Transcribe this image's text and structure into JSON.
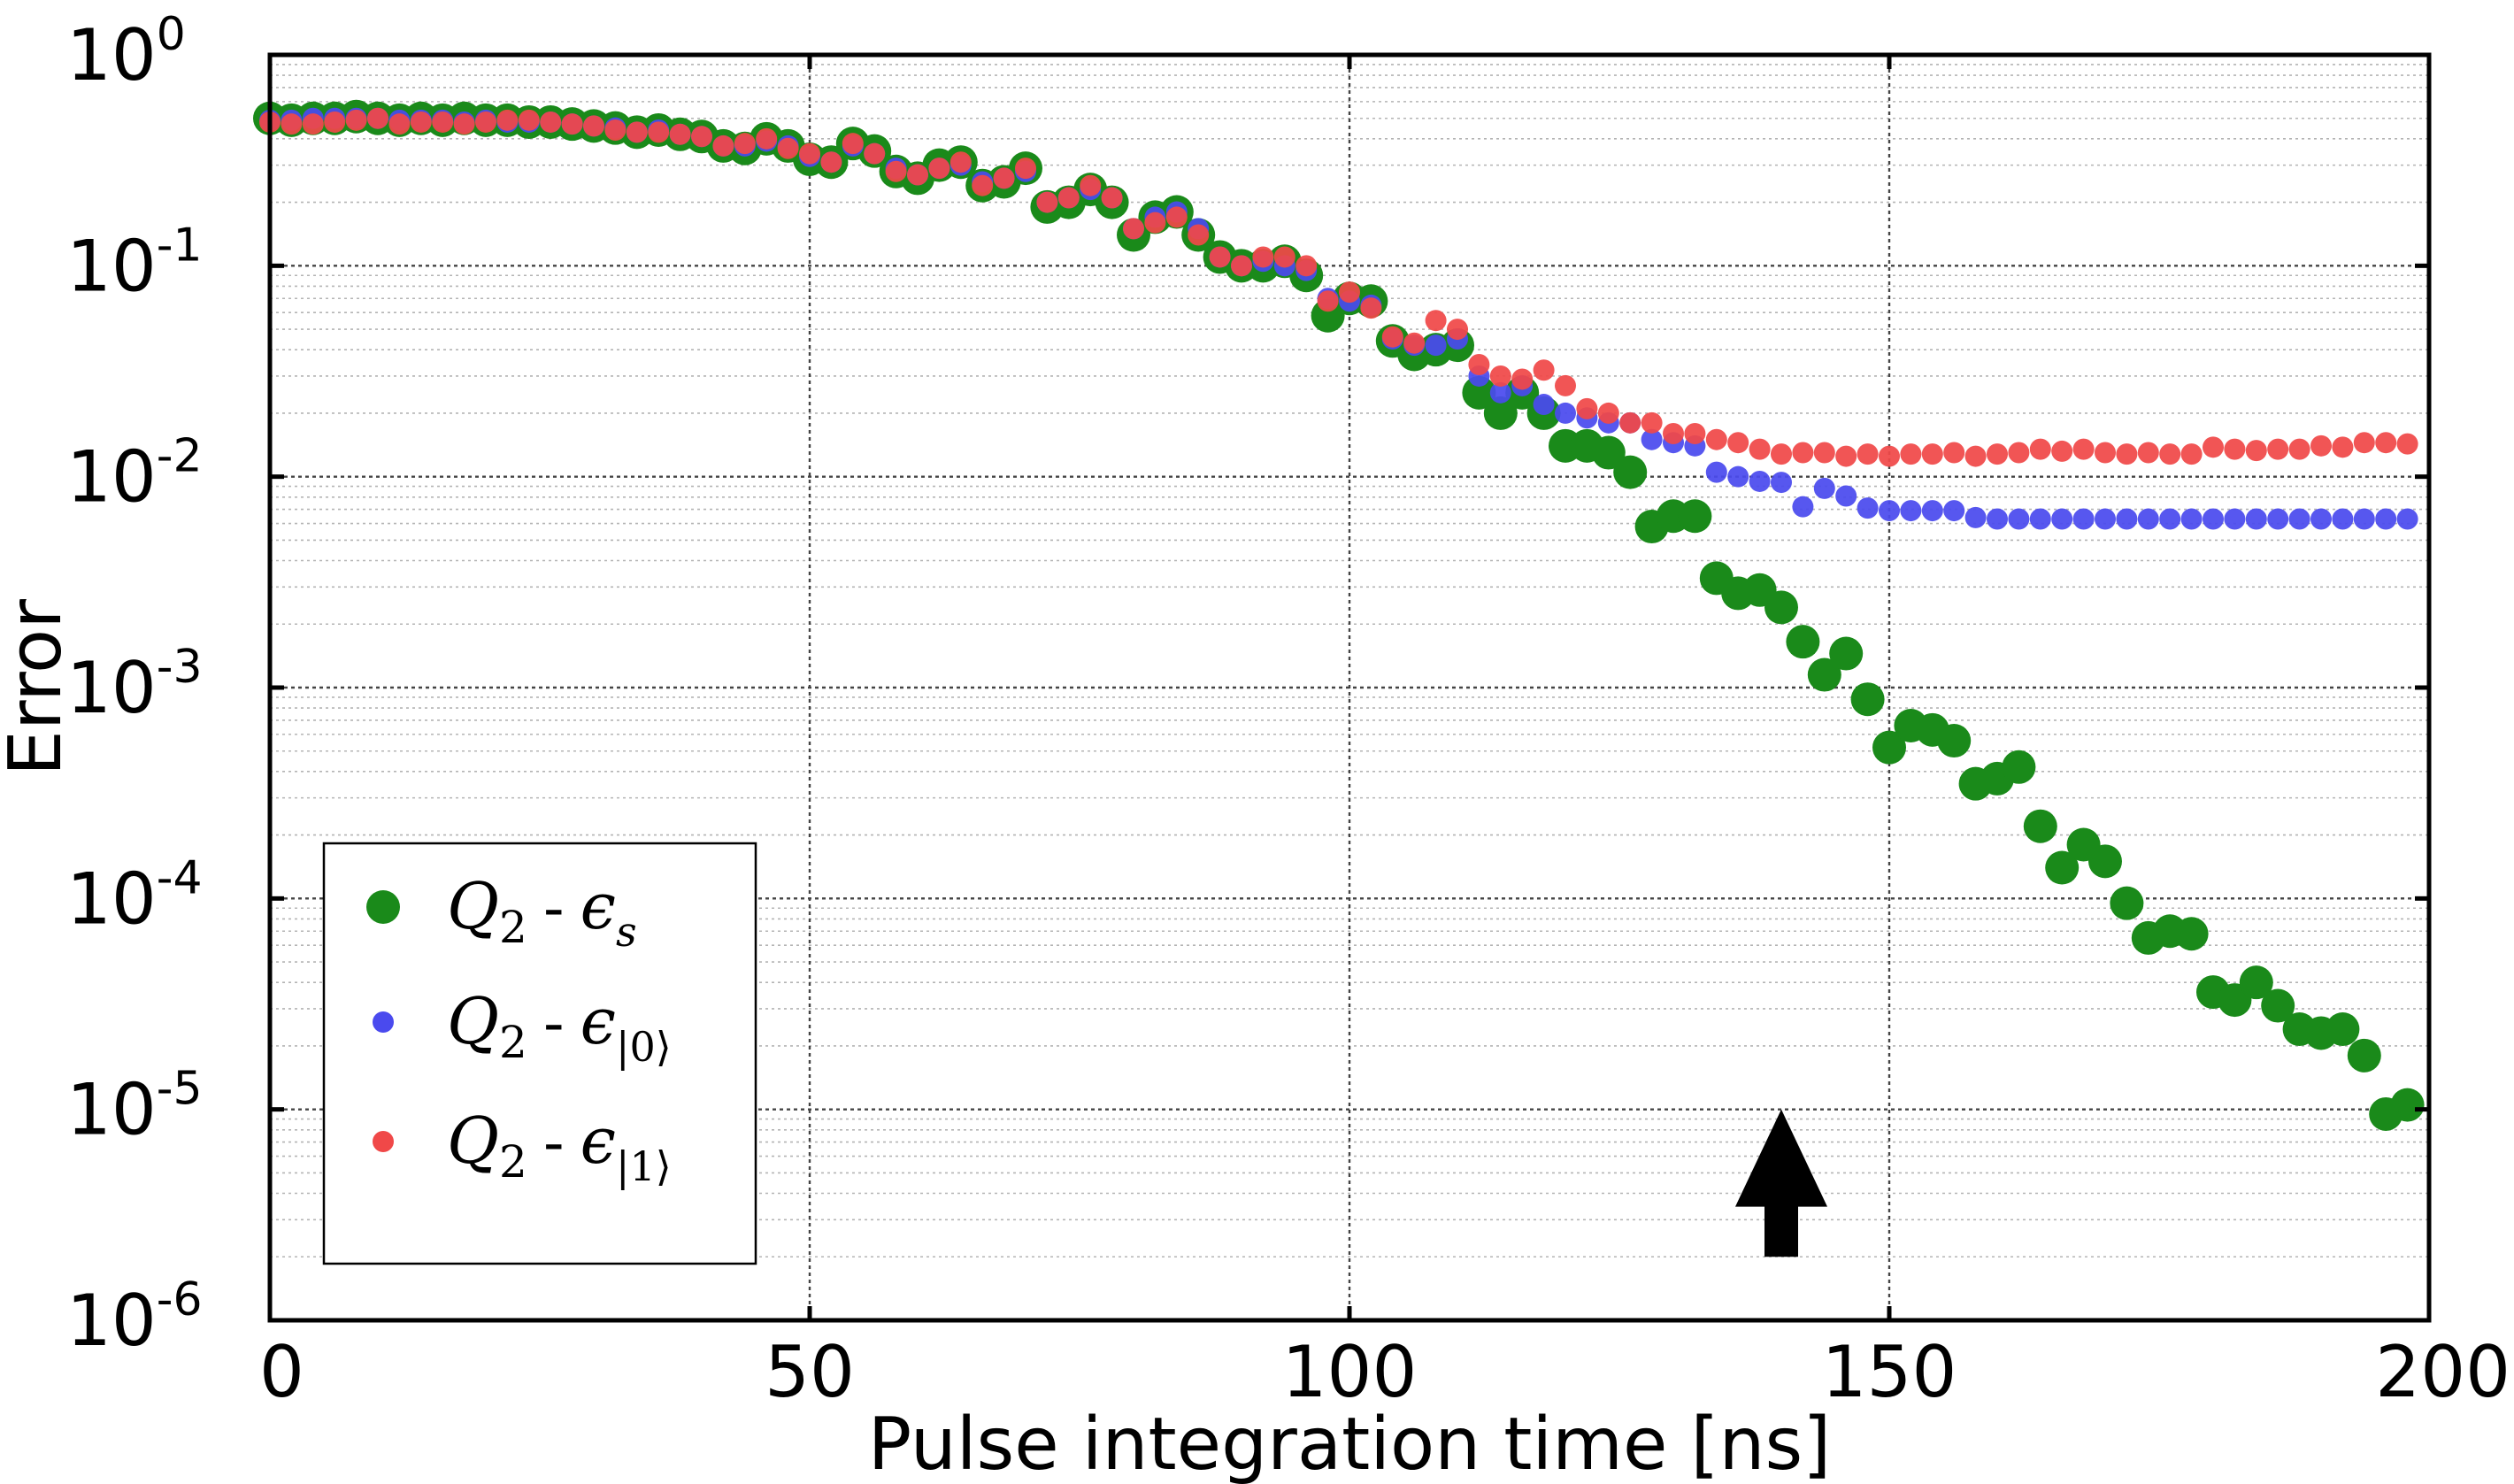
{
  "chart_data": {
    "type": "scatter",
    "title": "",
    "xlabel": "Pulse integration time [ns]",
    "ylabel": "Error",
    "xlim": [
      0,
      200
    ],
    "ylim": [
      1e-06,
      1
    ],
    "yscale": "log",
    "grid": true,
    "legend_position": "bottom-left",
    "x_ticks": [
      "0",
      "50",
      "100",
      "150",
      "200"
    ],
    "y_ticks": [
      {
        "base": "10",
        "exp": "0"
      },
      {
        "base": "10",
        "exp": "-1"
      },
      {
        "base": "10",
        "exp": "-2"
      },
      {
        "base": "10",
        "exp": "-3"
      },
      {
        "base": "10",
        "exp": "-4"
      },
      {
        "base": "10",
        "exp": "-5"
      },
      {
        "base": "10",
        "exp": "-6"
      }
    ],
    "annotation": {
      "type": "arrow",
      "x": 140,
      "direction": "up",
      "y_from": 2e-06,
      "y_to": 1e-05,
      "color": "#000000"
    },
    "series": [
      {
        "legend_prefix": "Q",
        "legend_sub": "2",
        "legend_symbol": "ϵ",
        "legend_symbol_sub": "s",
        "color": "#1a8a1a",
        "marker_size": "large",
        "x": [
          0,
          2,
          4,
          6,
          8,
          10,
          12,
          14,
          16,
          18,
          20,
          22,
          24,
          26,
          28,
          30,
          32,
          34,
          36,
          38,
          40,
          42,
          44,
          46,
          48,
          50,
          52,
          54,
          56,
          58,
          60,
          62,
          64,
          66,
          68,
          70,
          72,
          74,
          76,
          78,
          80,
          82,
          84,
          86,
          88,
          90,
          92,
          94,
          96,
          98,
          100,
          102,
          104,
          106,
          108,
          110,
          112,
          114,
          116,
          118,
          120,
          122,
          124,
          126,
          128,
          130,
          132,
          134,
          136,
          138,
          140,
          142,
          144,
          146,
          148,
          150,
          152,
          154,
          156,
          158,
          160,
          162,
          164,
          166,
          168,
          170,
          172,
          174,
          176,
          178,
          180,
          182,
          184,
          186,
          188,
          190,
          192,
          194,
          196,
          198
        ],
        "y": [
          0.5,
          0.49,
          0.5,
          0.5,
          0.51,
          0.5,
          0.49,
          0.5,
          0.49,
          0.5,
          0.49,
          0.49,
          0.48,
          0.48,
          0.47,
          0.46,
          0.45,
          0.43,
          0.44,
          0.42,
          0.41,
          0.37,
          0.36,
          0.4,
          0.37,
          0.32,
          0.31,
          0.38,
          0.35,
          0.28,
          0.26,
          0.3,
          0.31,
          0.24,
          0.25,
          0.29,
          0.19,
          0.2,
          0.23,
          0.2,
          0.14,
          0.17,
          0.18,
          0.14,
          0.11,
          0.1,
          0.1,
          0.105,
          0.09,
          0.058,
          0.07,
          0.068,
          0.044,
          0.038,
          0.04,
          0.042,
          0.025,
          0.02,
          0.025,
          0.02,
          0.014,
          0.014,
          0.013,
          0.0105,
          0.0058,
          0.0065,
          0.0065,
          0.0033,
          0.0028,
          0.0029,
          0.0024,
          0.00165,
          0.00115,
          0.00145,
          0.00088,
          0.00052,
          0.00066,
          0.00063,
          0.00056,
          0.00035,
          0.00037,
          0.00042,
          0.00022,
          0.00014,
          0.00018,
          0.00015,
          9.5e-05,
          6.5e-05,
          7e-05,
          6.8e-05,
          3.6e-05,
          3.3e-05,
          4e-05,
          3.1e-05,
          2.4e-05,
          2.3e-05,
          2.4e-05,
          1.8e-05,
          9.5e-06,
          1.05e-05
        ]
      },
      {
        "legend_prefix": "Q",
        "legend_sub": "2",
        "legend_symbol": "ϵ",
        "legend_symbol_sub": "|0⟩",
        "color": "#4a4aee",
        "marker_size": "small",
        "x": [
          0,
          2,
          4,
          6,
          8,
          10,
          12,
          14,
          16,
          18,
          20,
          22,
          24,
          26,
          28,
          30,
          32,
          34,
          36,
          38,
          40,
          42,
          44,
          46,
          48,
          50,
          52,
          54,
          56,
          58,
          60,
          62,
          64,
          66,
          68,
          70,
          72,
          74,
          76,
          78,
          80,
          82,
          84,
          86,
          88,
          90,
          92,
          94,
          96,
          98,
          100,
          102,
          104,
          106,
          108,
          110,
          112,
          114,
          116,
          118,
          120,
          122,
          124,
          126,
          128,
          130,
          132,
          134,
          136,
          138,
          140,
          142,
          144,
          146,
          148,
          150,
          152,
          154,
          156,
          158,
          160,
          162,
          164,
          166,
          168,
          170,
          172,
          174,
          176,
          178,
          180,
          182,
          184,
          186,
          188,
          190,
          192,
          194,
          196,
          198
        ],
        "y": [
          0.49,
          0.49,
          0.5,
          0.5,
          0.5,
          0.5,
          0.49,
          0.49,
          0.49,
          0.48,
          0.49,
          0.48,
          0.48,
          0.48,
          0.47,
          0.46,
          0.45,
          0.43,
          0.44,
          0.42,
          0.41,
          0.37,
          0.37,
          0.39,
          0.37,
          0.33,
          0.31,
          0.37,
          0.34,
          0.29,
          0.27,
          0.29,
          0.3,
          0.25,
          0.26,
          0.28,
          0.2,
          0.21,
          0.23,
          0.21,
          0.15,
          0.17,
          0.18,
          0.15,
          0.11,
          0.1,
          0.105,
          0.1,
          0.095,
          0.07,
          0.068,
          0.065,
          0.045,
          0.042,
          0.042,
          0.045,
          0.03,
          0.025,
          0.027,
          0.022,
          0.02,
          0.019,
          0.018,
          0.018,
          0.015,
          0.0145,
          0.014,
          0.0105,
          0.01,
          0.0095,
          0.0094,
          0.0072,
          0.0088,
          0.0081,
          0.0071,
          0.0069,
          0.0069,
          0.0069,
          0.0069,
          0.0064,
          0.0063,
          0.0063,
          0.0063,
          0.0063,
          0.0063,
          0.0063,
          0.0063,
          0.0063,
          0.0063,
          0.0063,
          0.0063,
          0.0063,
          0.0063,
          0.0063,
          0.0063,
          0.0063,
          0.0063,
          0.0063,
          0.0063,
          0.0063
        ]
      },
      {
        "legend_prefix": "Q",
        "legend_sub": "2",
        "legend_symbol": "ϵ",
        "legend_symbol_sub": "|1⟩",
        "color": "#f04848",
        "marker_size": "small",
        "x": [
          0,
          2,
          4,
          6,
          8,
          10,
          12,
          14,
          16,
          18,
          20,
          22,
          24,
          26,
          28,
          30,
          32,
          34,
          36,
          38,
          40,
          42,
          44,
          46,
          48,
          50,
          52,
          54,
          56,
          58,
          60,
          62,
          64,
          66,
          68,
          70,
          72,
          74,
          76,
          78,
          80,
          82,
          84,
          86,
          88,
          90,
          92,
          94,
          96,
          98,
          100,
          102,
          104,
          106,
          108,
          110,
          112,
          114,
          116,
          118,
          120,
          122,
          124,
          126,
          128,
          130,
          132,
          134,
          136,
          138,
          140,
          142,
          144,
          146,
          148,
          150,
          152,
          154,
          156,
          158,
          160,
          162,
          164,
          166,
          168,
          170,
          172,
          174,
          176,
          178,
          180,
          182,
          184,
          186,
          188,
          190,
          192,
          194,
          196,
          198
        ],
        "y": [
          0.48,
          0.47,
          0.47,
          0.48,
          0.49,
          0.5,
          0.47,
          0.48,
          0.48,
          0.47,
          0.48,
          0.49,
          0.49,
          0.48,
          0.47,
          0.46,
          0.44,
          0.43,
          0.43,
          0.42,
          0.41,
          0.37,
          0.38,
          0.4,
          0.36,
          0.34,
          0.31,
          0.38,
          0.34,
          0.28,
          0.27,
          0.29,
          0.31,
          0.24,
          0.26,
          0.29,
          0.2,
          0.21,
          0.24,
          0.21,
          0.15,
          0.16,
          0.17,
          0.14,
          0.11,
          0.1,
          0.11,
          0.11,
          0.1,
          0.068,
          0.075,
          0.063,
          0.046,
          0.043,
          0.055,
          0.05,
          0.034,
          0.03,
          0.029,
          0.032,
          0.027,
          0.021,
          0.02,
          0.018,
          0.018,
          0.016,
          0.016,
          0.015,
          0.0145,
          0.0135,
          0.0128,
          0.013,
          0.013,
          0.0125,
          0.0128,
          0.0125,
          0.0128,
          0.0128,
          0.013,
          0.0125,
          0.0128,
          0.013,
          0.0135,
          0.0132,
          0.0135,
          0.013,
          0.0128,
          0.013,
          0.0128,
          0.0128,
          0.0138,
          0.0135,
          0.0133,
          0.0135,
          0.0135,
          0.014,
          0.0138,
          0.0145,
          0.0145,
          0.0143
        ]
      }
    ]
  }
}
